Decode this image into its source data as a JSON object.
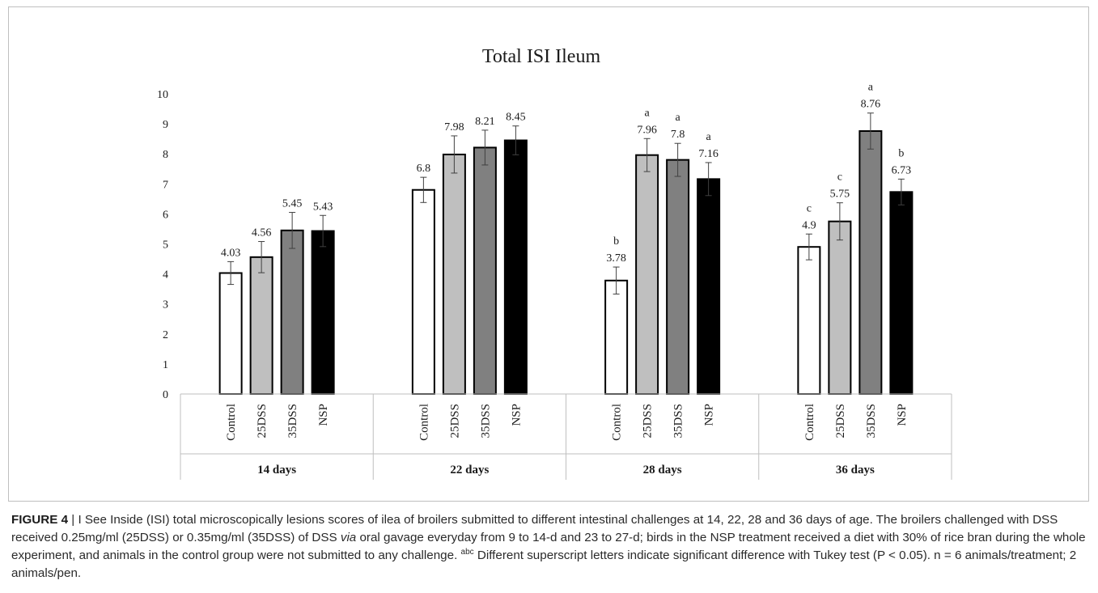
{
  "chart_data": {
    "type": "bar",
    "title": "Total ISI Ileum",
    "ylim": [
      0,
      10
    ],
    "yticks": [
      0,
      1,
      2,
      3,
      4,
      5,
      6,
      7,
      8,
      9,
      10
    ],
    "grid": false,
    "legend": "none",
    "groups": [
      {
        "label": "14 days",
        "bars": [
          {
            "category": "Control",
            "value": 4.03,
            "error": 0.38,
            "value_label": "4.03",
            "letter": ""
          },
          {
            "category": "25DSS",
            "value": 4.56,
            "error": 0.52,
            "value_label": "4.56",
            "letter": ""
          },
          {
            "category": "35DSS",
            "value": 5.45,
            "error": 0.6,
            "value_label": "5.45",
            "letter": ""
          },
          {
            "category": "NSP",
            "value": 5.43,
            "error": 0.52,
            "value_label": "5.43",
            "letter": ""
          }
        ]
      },
      {
        "label": "22 days",
        "bars": [
          {
            "category": "Control",
            "value": 6.8,
            "error": 0.42,
            "value_label": "6.8",
            "letter": ""
          },
          {
            "category": "25DSS",
            "value": 7.98,
            "error": 0.62,
            "value_label": "7.98",
            "letter": ""
          },
          {
            "category": "35DSS",
            "value": 8.21,
            "error": 0.58,
            "value_label": "8.21",
            "letter": ""
          },
          {
            "category": "NSP",
            "value": 8.45,
            "error": 0.48,
            "value_label": "8.45",
            "letter": ""
          }
        ]
      },
      {
        "label": "28 days",
        "bars": [
          {
            "category": "Control",
            "value": 3.78,
            "error": 0.45,
            "value_label": "3.78",
            "letter": "b"
          },
          {
            "category": "25DSS",
            "value": 7.96,
            "error": 0.55,
            "value_label": "7.96",
            "letter": "a"
          },
          {
            "category": "35DSS",
            "value": 7.8,
            "error": 0.55,
            "value_label": "7.8",
            "letter": "a"
          },
          {
            "category": "NSP",
            "value": 7.16,
            "error": 0.55,
            "value_label": "7.16",
            "letter": "a"
          }
        ]
      },
      {
        "label": "36 days",
        "bars": [
          {
            "category": "Control",
            "value": 4.9,
            "error": 0.43,
            "value_label": "4.9",
            "letter": "c"
          },
          {
            "category": "25DSS",
            "value": 5.75,
            "error": 0.62,
            "value_label": "5.75",
            "letter": "c"
          },
          {
            "category": "35DSS",
            "value": 8.76,
            "error": 0.6,
            "value_label": "8.76",
            "letter": "a"
          },
          {
            "category": "NSP",
            "value": 6.73,
            "error": 0.43,
            "value_label": "6.73",
            "letter": "b"
          }
        ]
      }
    ],
    "series_colors": {
      "Control": "#ffffff",
      "25DSS": "#bfbfbf",
      "35DSS": "#808080",
      "NSP": "#000000"
    }
  },
  "caption": {
    "figure_label": "FIGURE 4",
    "separator": " | ",
    "part1": "I See Inside (ISI) total microscopically lesions scores of ilea of broilers submitted to different intestinal challenges at 14, 22, 28 and 36 days of age. The broilers challenged with DSS received 0.25mg/ml (25DSS) or 0.35mg/ml (35DSS) of DSS ",
    "via": "via",
    "part2": " oral gavage everyday from 9 to 14-d and 23 to 27-d; birds in the NSP treatment received a diet with 30% of rice bran during the whole experiment, and animals in the control group were not submitted to any challenge. ",
    "superscript": "abc",
    "part3": " Different superscript letters indicate significant difference with Tukey test (P < 0.05). n = 6 animals/treatment; 2 animals/pen."
  }
}
